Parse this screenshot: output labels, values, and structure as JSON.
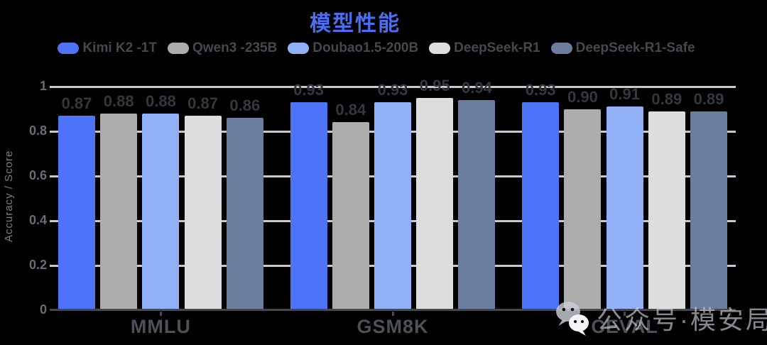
{
  "background": "#000000",
  "chart_data": {
    "type": "bar",
    "title": "模型性能",
    "title_color": "#4a6df2",
    "ylabel": "Accuracy / Score",
    "xlabel": "",
    "categories": [
      "MMLU",
      "GSM8K",
      "CEVAL"
    ],
    "series": [
      {
        "name": "Kimi K2 -1T",
        "color": "#4c73f8",
        "values": [
          0.87,
          0.93,
          0.93
        ]
      },
      {
        "name": "Qwen3 -235B",
        "color": "#acacac",
        "values": [
          0.88,
          0.84,
          0.9
        ]
      },
      {
        "name": "Doubao1.5-200B",
        "color": "#90b1f8",
        "values": [
          0.88,
          0.93,
          0.91
        ]
      },
      {
        "name": "DeepSeek-R1",
        "color": "#dcdddf",
        "values": [
          0.87,
          0.95,
          0.89
        ]
      },
      {
        "name": "DeepSeek-R1-Safe",
        "color": "#6b7e9e",
        "values": [
          0.86,
          0.94,
          0.89
        ]
      }
    ],
    "ylim": [
      0,
      1
    ],
    "yticks": [
      {
        "value": 0,
        "label": "0"
      },
      {
        "value": 0.2,
        "label": "0.2"
      },
      {
        "value": 0.4,
        "label": "0.4"
      },
      {
        "value": 0.6,
        "label": "0.6"
      },
      {
        "value": 0.8,
        "label": "0.8"
      },
      {
        "value": 1,
        "label": "1"
      }
    ],
    "grid": true,
    "legend_position": "top",
    "value_labels": true,
    "value_label_decimals": 2
  },
  "watermark": {
    "icon": "wechat-icon",
    "text": "公众号·模安局"
  }
}
